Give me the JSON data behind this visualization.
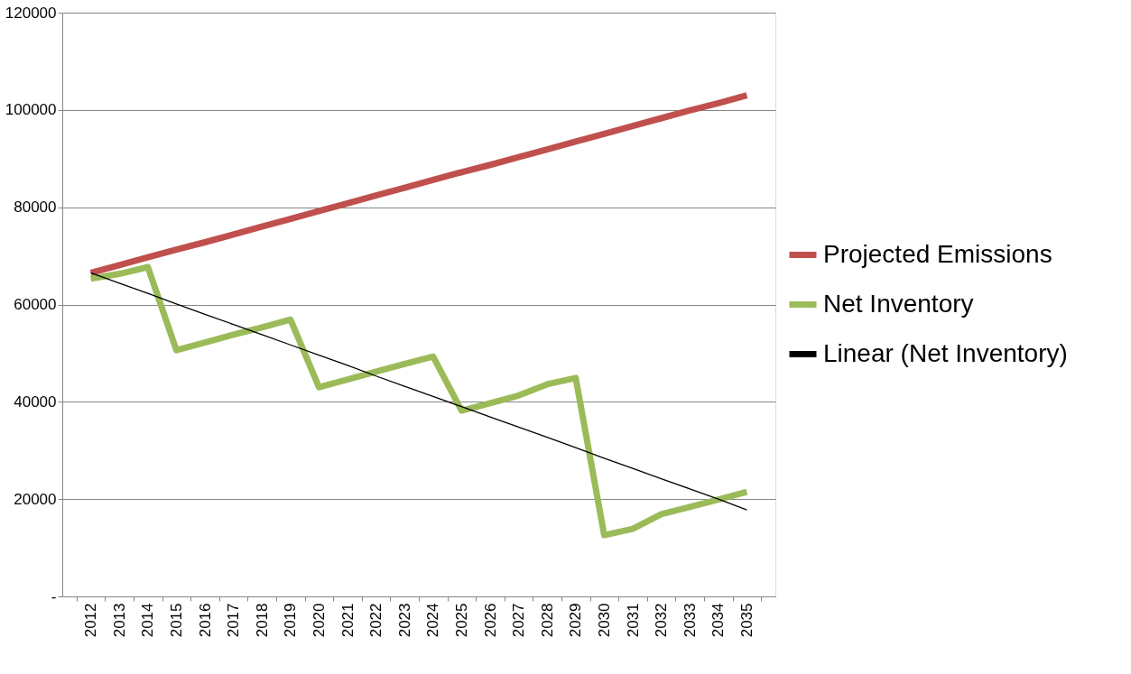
{
  "chart_data": {
    "type": "line",
    "categories": [
      "2012",
      "2013",
      "2014",
      "2015",
      "2016",
      "2017",
      "2018",
      "2019",
      "2020",
      "2021",
      "2022",
      "2023",
      "2024",
      "2025",
      "2026",
      "2027",
      "2028",
      "2029",
      "2030",
      "2031",
      "2032",
      "2033",
      "2034",
      "2035"
    ],
    "series": [
      {
        "name": "Projected Emissions",
        "color": "#c0504d",
        "values": [
          66500,
          68100,
          69700,
          71300,
          72800,
          74400,
          76000,
          77600,
          79200,
          80800,
          82400,
          84000,
          85600,
          87200,
          88700,
          90300,
          91900,
          93500,
          95100,
          96700,
          98300,
          99900,
          101400,
          103000
        ]
      },
      {
        "name": "Net Inventory",
        "color": "#9bbb59",
        "values": [
          65300,
          66300,
          67700,
          50600,
          52200,
          53800,
          55300,
          56900,
          43000,
          44600,
          46200,
          47800,
          49300,
          38200,
          39700,
          41300,
          43600,
          44900,
          12600,
          13900,
          16900,
          18400,
          19900,
          21500
        ]
      },
      {
        "name": "Linear (Net Inventory)",
        "color": "#000000",
        "type": "line",
        "values": [
          66500,
          64400,
          62300,
          60100,
          58000,
          55900,
          53800,
          51700,
          49600,
          47500,
          45300,
          43200,
          41100,
          39000,
          36900,
          34800,
          32700,
          30600,
          28400,
          26300,
          24200,
          22100,
          20000,
          17800
        ]
      }
    ],
    "ylim": [
      0,
      120000
    ],
    "yticks": [
      {
        "value": 0,
        "label": "-"
      },
      20000,
      40000,
      60000,
      80000,
      100000,
      120000
    ],
    "grid": "y",
    "legend": "right",
    "marker": "none",
    "line_style": "solid"
  }
}
